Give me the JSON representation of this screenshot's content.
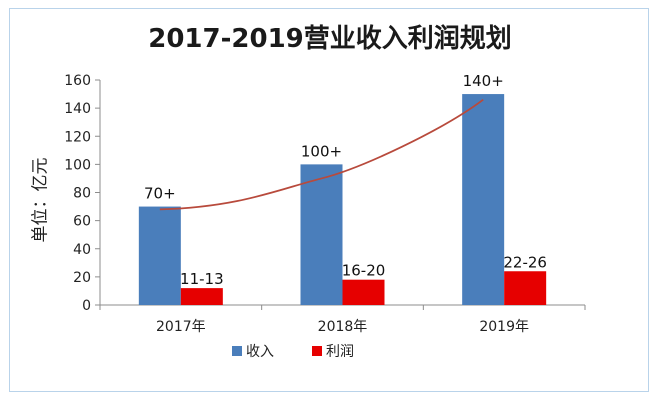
{
  "chart_data": {
    "type": "bar",
    "title": "2017-2019营业收入利润规划",
    "ylabel": "单位：亿元",
    "xlabel": "",
    "categories": [
      "2017年",
      "2018年",
      "2019年"
    ],
    "ylim": [
      0,
      160
    ],
    "yticks": [
      0,
      20,
      40,
      60,
      80,
      100,
      120,
      140,
      160
    ],
    "series": [
      {
        "name": "收入",
        "color": "#4a7ebb",
        "values": [
          70,
          100,
          150
        ],
        "labels": [
          "70+",
          "100+",
          "140+"
        ]
      },
      {
        "name": "利润",
        "color": "#e60000",
        "values": [
          12,
          18,
          24
        ],
        "labels": [
          "11-13",
          "16-20",
          "22-26"
        ]
      }
    ],
    "trendline": {
      "color": "#b84a3c",
      "values": [
        68,
        90,
        146
      ]
    },
    "legend_position": "bottom",
    "grid": false
  }
}
